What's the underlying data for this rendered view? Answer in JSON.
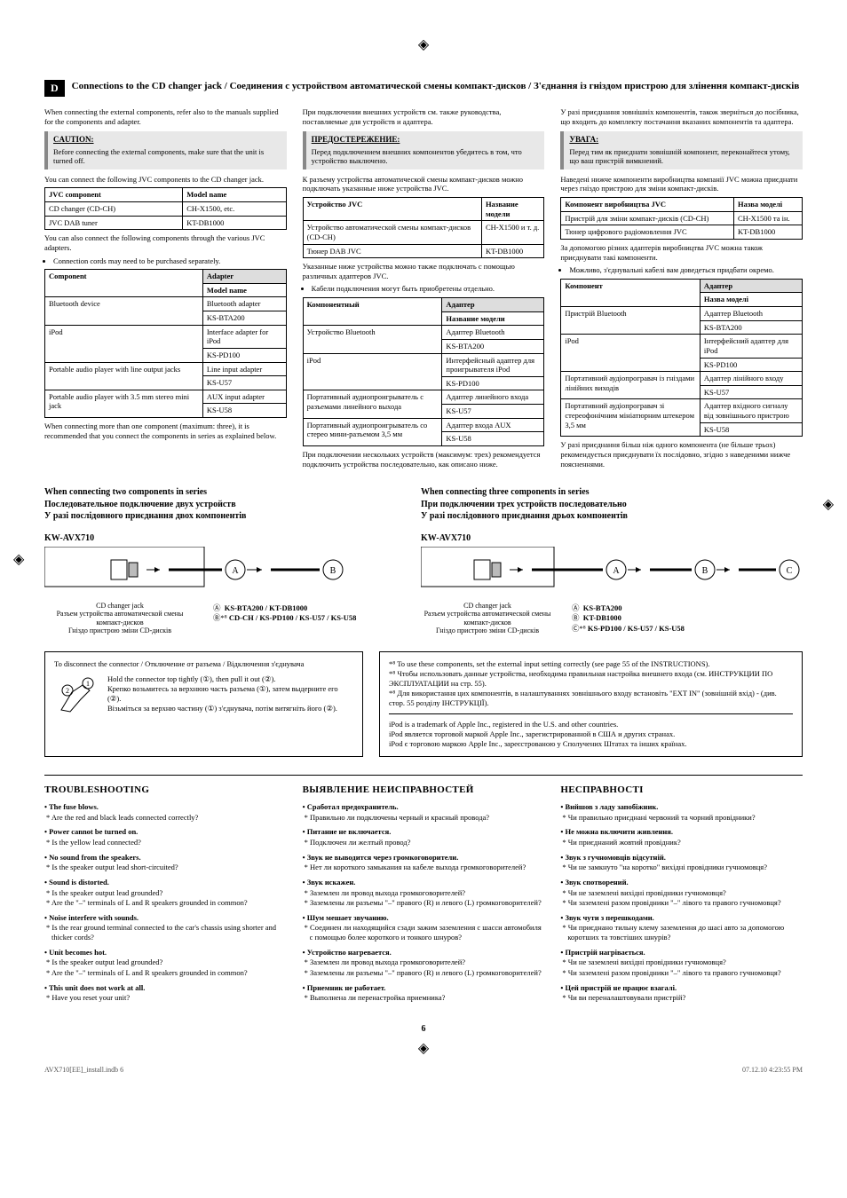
{
  "reg_marks": {
    "top": "◈",
    "left": "◈",
    "right": "◈"
  },
  "section_d": {
    "badge": "D",
    "title_en": "Connections to the CD changer jack / Соединения с устройством автоматической смены компакт-дисков / З'єднання із гніздом пристрою для злінення компакт-дисків"
  },
  "col_en": {
    "intro": "When connecting the external components, refer also to the manuals supplied for the components and adapter.",
    "caution_title": "CAUTION:",
    "caution_body": "Before connecting the external components, make sure that the unit is turned off.",
    "p1": "You can connect the following JVC components to the CD changer jack.",
    "table1": {
      "h1": "JVC component",
      "h2": "Model name",
      "rows": [
        [
          "CD changer (CD-CH)",
          "CH-X1500, etc."
        ],
        [
          "JVC DAB tuner",
          "KT-DB1000"
        ]
      ]
    },
    "p2": "You can also connect the following components through the various JVC adapters.",
    "p2b": "Connection cords may need to be purchased separately.",
    "table2": {
      "h1": "Component",
      "h2a": "Adapter",
      "h2b": "Model name",
      "rows": [
        [
          "Bluetooth device",
          "Bluetooth adapter",
          "KS-BTA200"
        ],
        [
          "iPod",
          "Interface adapter for iPod",
          "KS-PD100"
        ],
        [
          "Portable audio player with line output jacks",
          "Line input adapter",
          "KS-U57"
        ],
        [
          "Portable audio player with 3.5 mm stereo mini jack",
          "AUX input adapter",
          "KS-U58"
        ]
      ]
    },
    "p3": "When connecting more than one component (maximum: three), it is recommended that you connect the components in series as explained below."
  },
  "col_ru": {
    "intro": "При подключении внешних устройств см. также руководства, поставляемые для устройств и адаптера.",
    "caution_title": "ПРЕДОСТЕРЕЖЕНИЕ:",
    "caution_body": "Перед подключением внешних компонентов убедитесь в том, что устройство выключено.",
    "p1": "К разъему устройства автоматической смены компакт-дисков можно подключать указанные ниже устройства JVC.",
    "table1": {
      "h1": "Устройство JVC",
      "h2": "Название модели",
      "rows": [
        [
          "Устройство автоматической смены компакт-дисков (CD-CH)",
          "CH-X1500 и т. д."
        ],
        [
          "Тюнер DAB JVC",
          "KT-DB1000"
        ]
      ]
    },
    "p2": "Указанные ниже устройства можно также подключать с помощью различных адаптеров JVC.",
    "p2b": "Кабели подключения могут быть приобретены отдельно.",
    "table2": {
      "h1": "Компонентный",
      "h2a": "Адаптер",
      "h2b": "Название модели",
      "rows": [
        [
          "Устройство Bluetooth",
          "Адаптер Bluetooth",
          "KS-BTA200"
        ],
        [
          "iPod",
          "Интерфейсный адаптер для проигрывателя iPod",
          "KS-PD100"
        ],
        [
          "Портативный аудиопроигрыватель с разъемами линейного выхода",
          "Адаптер линейного входа",
          "KS-U57"
        ],
        [
          "Портативный аудиопроигрыватель со стерео мини-разъемом 3,5 мм",
          "Адаптер входа AUX",
          "KS-U58"
        ]
      ]
    },
    "p3": "При подключении нескольких устройств (максимум: трех) рекомендуется подключить устройства последовательно, как описано ниже."
  },
  "col_uk": {
    "intro": "У разі приєднання зовнішніх компонентів, також зверніться до посібника, що входить до комплекту постачання вказаних компонентів та адаптера.",
    "caution_title": "УВАГА:",
    "caution_body": "Перед тим як приєднати зовнішній компонент, переконайтеся утому, що ваш пристрій вимкнений.",
    "p1": "Наведені нижче компоненти виробництва компанії JVC можна приєднати через гніздо пристрою для зміни компакт-дисків.",
    "table1": {
      "h1": "Компонент виробництва JVC",
      "h2": "Назва моделі",
      "rows": [
        [
          "Пристрій для зміни компакт-дисків (CD-CH)",
          "CH-X1500 та ін."
        ],
        [
          "Тюнер цифрового радіомовлення JVC",
          "KT-DB1000"
        ]
      ]
    },
    "p2": "За допомогою різних адаптерів виробництва JVC можна також приєднувати такі компоненти.",
    "p2b": "Можливо, з'єднувальні кабелі вам доведеться придбати окремо.",
    "table2": {
      "h1": "Компонент",
      "h2a": "Адаптер",
      "h2b": "Назва моделі",
      "rows": [
        [
          "Пристрій Bluetooth",
          "Адаптер Bluetooth",
          "KS-BTA200"
        ],
        [
          "iPod",
          "Інтерфейсний адаптер для iPod",
          "KS-PD100"
        ],
        [
          "Портативний аудіопрогравач із гніздами лінійних виходів",
          "Адаптер лінійного входу",
          "KS-U57"
        ],
        [
          "Портативний аудіопрогравач зі стереофонічним мініатюрним штекером 3,5 мм",
          "Адаптер вхідного сигналу від зовнішнього пристрою",
          "KS-U58"
        ]
      ]
    },
    "p3": "У разі приєднання більш ніж одного компонента (не більше трьох) рекомендується приєднувати їх послідовно, згідно з наведеними нижче поясненнями."
  },
  "series2": {
    "title": "When connecting two components in series\nПоследовательное подключение двух устройств\nУ разі послідовного приєднання двох компонентів",
    "model": "KW-AVX710",
    "caption": "CD changer jack\nРазъем устройства автоматической смены компакт-дисков\nГніздо пристрою зміни CD-дисків",
    "legend_a": "Ⓐ",
    "legend_a_text": "KS-BTA200 / KT-DB1000",
    "legend_b": "Ⓑ*⁸",
    "legend_b_text": "CD-CH / KS-PD100 / KS-U57 / KS-U58"
  },
  "series3": {
    "title": "When connecting three components in series\nПри подключении трех устройств последовательно\nУ разі послідовного приєднання дрьох компонентів",
    "model": "KW-AVX710",
    "caption": "CD changer jack\nРазъем устройства автоматической смены компакт-дисков\nГніздо пристрою зміни CD-дисків",
    "legend_a": "Ⓐ",
    "legend_a_text": "KS-BTA200",
    "legend_b": "Ⓑ",
    "legend_b_text": "KT-DB1000",
    "legend_c": "Ⓒ*⁸",
    "legend_c_text": "KS-PD100 / KS-U57 / KS-U58"
  },
  "box_disconnect": {
    "title": "To disconnect the connector / Отключение от разъема / Відключення з'єднувача",
    "l1": "Hold the connector top tightly (①), then pull it out (②).",
    "l2": "Крепко возьмитесь за верхнюю часть разъема (①), затем выдерните его (②).",
    "l3": "Візьміться за верхню частину (①) з'єднувача, потім витягніть його (②)."
  },
  "box_footnotes": {
    "f1": "*⁸ To use these components, set the external input setting correctly (see page 55 of the INSTRUCTIONS).",
    "f2": "*⁸ Чтобы использовать данные устройства, необходима правильная настройка внешнего входа (см. ИНСТРУКЦИИ ПО ЭКСПЛУАТАЦИИ на стр. 55).",
    "f3": "*⁸ Для використання цих компонентів, в налаштуваннях зовнішнього входу встановіть \"EXT IN\" (зовнішній вхід) - (див. стор. 55 розділу ІНСТРУКЦІЇ).",
    "ipod1": "iPod is a trademark of Apple Inc., registered in the U.S. and other countries.",
    "ipod2": "iPod является торговой маркой Apple Inc., зарегистрированной в США и других странах.",
    "ipod3": "iPod є торговою маркою Apple Inc., зареєстрованою у Сполучених Штатах та інших країнах."
  },
  "trouble": {
    "en": {
      "title": "TROUBLESHOOTING",
      "items": [
        {
          "h": "The fuse blows.",
          "s": [
            "Are the red and black leads connected correctly?"
          ]
        },
        {
          "h": "Power cannot be turned on.",
          "s": [
            "Is the yellow lead connected?"
          ]
        },
        {
          "h": "No sound from the speakers.",
          "s": [
            "Is the speaker output lead short-circuited?"
          ]
        },
        {
          "h": "Sound is distorted.",
          "s": [
            "Is the speaker output lead grounded?",
            "Are the \"–\" terminals of L and R speakers grounded in common?"
          ]
        },
        {
          "h": "Noise interfere with sounds.",
          "s": [
            "Is the rear ground terminal connected to the car's chassis using shorter and thicker cords?"
          ]
        },
        {
          "h": "Unit becomes hot.",
          "s": [
            "Is the speaker output lead grounded?",
            "Are the \"–\" terminals of L and R speakers grounded in common?"
          ]
        },
        {
          "h": "This unit does not work at all.",
          "s": [
            "Have you reset your unit?"
          ]
        }
      ]
    },
    "ru": {
      "title": "ВЫЯВЛЕНИЕ НЕИСПРАВНОСТЕЙ",
      "items": [
        {
          "h": "Сработал предохранитель.",
          "s": [
            "Правильно ли подключены черный и красный провода?"
          ]
        },
        {
          "h": "Питание не включается.",
          "s": [
            "Подключен ли желтый провод?"
          ]
        },
        {
          "h": "Звук не выводится через громкоговорители.",
          "s": [
            "Нет ли короткого замыкания на кабеле выхода громкоговорителей?"
          ]
        },
        {
          "h": "Звук искажен.",
          "s": [
            "Заземлен ли провод выхода громкоговорителей?",
            "Заземлены ли разъемы \"–\" правого (R) и левого (L) громкоговорителей?"
          ]
        },
        {
          "h": "Шум мешает звучанию.",
          "s": [
            "Соединен ли находящийся сзади зажим заземления с шасси автомобиля с помощью более короткого и тонкого шнуров?"
          ]
        },
        {
          "h": "Устройство нагревается.",
          "s": [
            "Заземлен ли провод выхода громкоговорителей?",
            "Заземлены ли разъемы \"–\" правого (R) и левого (L) громкоговорителей?"
          ]
        },
        {
          "h": "Приемник не работает.",
          "s": [
            "Выполнена ли перенастройка приемника?"
          ]
        }
      ]
    },
    "uk": {
      "title": "НЕСПРАВНОСТІ",
      "items": [
        {
          "h": "Вийшов з ладу запобіжник.",
          "s": [
            "Чи правильно приєднані червоний та чорний провідники?"
          ]
        },
        {
          "h": "Не можна включити живлення.",
          "s": [
            "Чи приєднаний жовтий провідник?"
          ]
        },
        {
          "h": "Звук з гучномовців відсутній.",
          "s": [
            "Чи не замкнуто \"на коротко\" вихідні провідники гучномовця?"
          ]
        },
        {
          "h": "Звук спотворений.",
          "s": [
            "Чи не заземлені вихідні провідники гучномовця?",
            "Чи заземлені разом провідники \"–\" лівого та правого гучномовця?"
          ]
        },
        {
          "h": "Звук чути з перешкодами.",
          "s": [
            "Чи приєднано тильну клему заземлення до шасі авто за допомогою коротших та товстіших шнурів?"
          ]
        },
        {
          "h": "Пристрій нагрівається.",
          "s": [
            "Чи не заземлені вихідні провідники гучномовця?",
            "Чи заземлені разом провідники \"–\" лівого та правого гучномовця?"
          ]
        },
        {
          "h": "Цей пристрій не працює взагалі.",
          "s": [
            "Чи ви переналаштовували пристрій?"
          ]
        }
      ]
    }
  },
  "pagenum": "6",
  "footer": {
    "left": "AVX710[EE]_install.indb   6",
    "right": "07.12.10   4:23:55 PM"
  },
  "colors": {
    "gray_badge": "#000000",
    "caution_bg": "#e8e8e8",
    "table_header_gray": "#dddddd"
  }
}
